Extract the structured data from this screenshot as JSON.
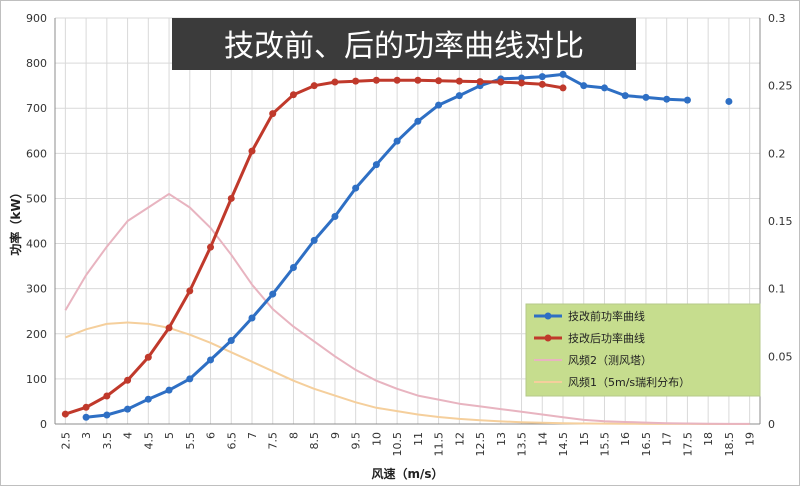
{
  "chart_data": {
    "type": "line",
    "title": "技改前、后的功率曲线对比",
    "xlabel": "风速（m/s）",
    "ylabel": "功率（kW）",
    "x_ticks": [
      "2.5",
      "3",
      "3.5",
      "4",
      "4.5",
      "5",
      "5.5",
      "6",
      "6.5",
      "7",
      "7.5",
      "8",
      "8.5",
      "9",
      "9.5",
      "10",
      "10.5",
      "11",
      "11.5",
      "12",
      "12.5",
      "13",
      "13.5",
      "14",
      "14.5",
      "15",
      "15.5",
      "16",
      "16.5",
      "17",
      "17.5",
      "18",
      "18.5",
      "19"
    ],
    "xlim": [
      2.25,
      19.25
    ],
    "ylim": [
      0,
      900
    ],
    "y_ticks": [
      0,
      100,
      200,
      300,
      400,
      500,
      600,
      700,
      800,
      900
    ],
    "y2lim": [
      0,
      0.3
    ],
    "y2_ticks": [
      "0",
      "0.05",
      "0.1",
      "0.15",
      "0.2",
      "0.25",
      "0.3"
    ],
    "grid": true,
    "legend_position": "right",
    "series": [
      {
        "name": "技改前功率曲线",
        "axis": "left",
        "color": "#2e6fc4",
        "markers": true,
        "x": [
          3,
          3.5,
          4,
          4.5,
          5,
          5.5,
          6,
          6.5,
          7,
          7.5,
          8,
          8.5,
          9,
          9.5,
          10,
          10.5,
          11,
          11.5,
          12,
          12.5,
          13,
          13.5,
          14,
          14.5,
          15,
          15.5,
          16,
          16.5,
          17,
          17.5,
          18.5
        ],
        "values": [
          15,
          20,
          33,
          55,
          75,
          100,
          142,
          185,
          235,
          288,
          347,
          407,
          460,
          523,
          575,
          627,
          671,
          707,
          728,
          750,
          765,
          767,
          770,
          775,
          750,
          745,
          728,
          724,
          720,
          718,
          715
        ],
        "gap_before_last": true
      },
      {
        "name": "技改后功率曲线",
        "axis": "left",
        "color": "#c0392b",
        "markers": true,
        "x": [
          2.5,
          3,
          3.5,
          4,
          4.5,
          5,
          5.5,
          6,
          6.5,
          7,
          7.5,
          8,
          8.5,
          9,
          9.5,
          10,
          10.5,
          11,
          11.5,
          12,
          12.5,
          13,
          13.5,
          14,
          14.5
        ],
        "values": [
          22,
          37,
          62,
          97,
          148,
          213,
          295,
          392,
          500,
          605,
          688,
          730,
          750,
          758,
          760,
          762,
          762,
          762,
          761,
          760,
          759,
          758,
          756,
          753,
          745
        ]
      },
      {
        "name": "风频2（测风塔）",
        "axis": "right",
        "color": "#e8b4c0",
        "markers": false,
        "x": [
          2.5,
          3,
          3.5,
          4,
          4.5,
          5,
          5.5,
          6,
          6.5,
          7,
          7.5,
          8,
          8.5,
          9,
          9.5,
          10,
          10.5,
          11,
          11.5,
          12,
          12.5,
          13,
          13.5,
          14,
          14.5,
          15,
          15.5,
          16,
          16.5,
          17,
          17.5,
          18,
          18.5,
          19
        ],
        "values": [
          0.084,
          0.11,
          0.131,
          0.15,
          0.16,
          0.17,
          0.16,
          0.145,
          0.125,
          0.103,
          0.085,
          0.072,
          0.061,
          0.05,
          0.04,
          0.032,
          0.026,
          0.021,
          0.018,
          0.015,
          0.013,
          0.011,
          0.009,
          0.007,
          0.005,
          0.003,
          0.002,
          0.0015,
          0.001,
          0.0006,
          0.0004,
          0.0002,
          0.0001,
          0.0001
        ]
      },
      {
        "name": "风频1（5m/s瑞利分布）",
        "axis": "right",
        "color": "#f5cf9c",
        "markers": false,
        "x": [
          2.5,
          3,
          3.5,
          4,
          4.5,
          5,
          5.5,
          6,
          6.5,
          7,
          7.5,
          8,
          8.5,
          9,
          9.5,
          10,
          10.5,
          11,
          11.5,
          12,
          12.5,
          13,
          13.5,
          14,
          14.5,
          15,
          15.5,
          16,
          16.5,
          17,
          17.5,
          18,
          18.5,
          19
        ],
        "values": [
          0.064,
          0.07,
          0.074,
          0.075,
          0.074,
          0.071,
          0.066,
          0.06,
          0.053,
          0.046,
          0.039,
          0.032,
          0.026,
          0.021,
          0.016,
          0.012,
          0.0095,
          0.007,
          0.0052,
          0.0038,
          0.0027,
          0.0019,
          0.0013,
          0.0009,
          0.0006,
          0.0004,
          0.0003,
          0.0002,
          0.0001,
          0.0001,
          5e-05,
          3e-05,
          2e-05,
          1e-05
        ]
      }
    ],
    "legend": {
      "background": "#c6dd8e",
      "items": [
        "技改前功率曲线",
        "技改后功率曲线",
        "风频2（测风塔）",
        "风频1（5m/s瑞利分布）"
      ]
    },
    "colors": {
      "title_background": "#3b3b3b",
      "title_text": "#ffffff",
      "grid": "#d9d9d9",
      "axis_text": "#333333"
    }
  }
}
